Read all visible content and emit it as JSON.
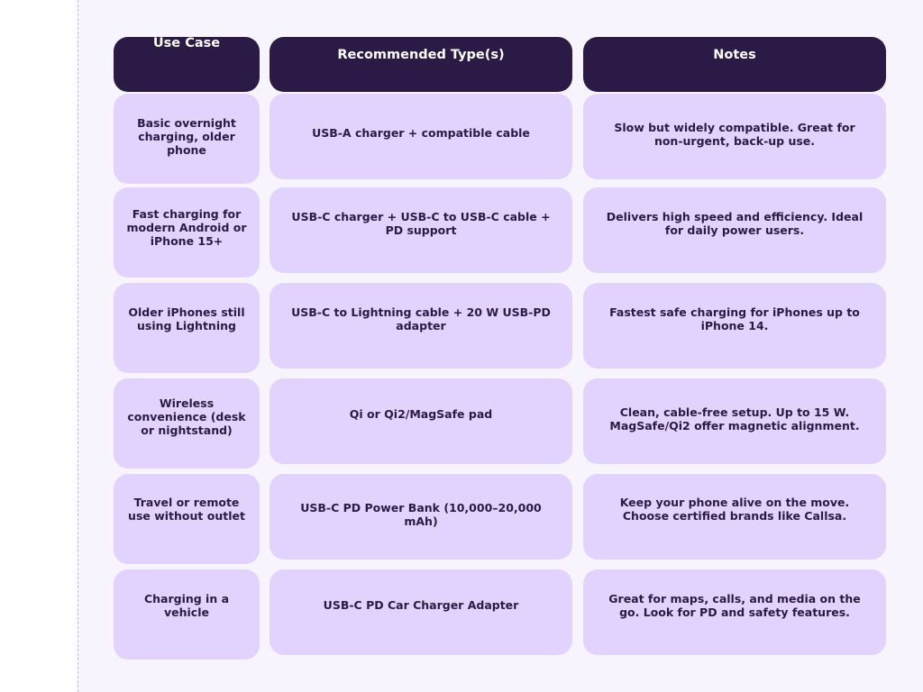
{
  "table": {
    "headers": [
      "Use Case",
      "Recommended Type(s)",
      "Notes"
    ],
    "rows": [
      [
        "Basic overnight charging, older phone",
        "USB-A charger + compatible cable",
        "Slow but widely compatible. Great for non-urgent, back-up use."
      ],
      [
        "Fast charging for modern Android or iPhone 15+",
        "USB-C charger + USB-C to USB-C cable + PD support",
        "Delivers high speed and efficiency. Ideal for daily power users."
      ],
      [
        "Older iPhones still using Lightning",
        "USB-C to Lightning cable + 20 W USB-PD adapter",
        "Fastest safe charging for iPhones up to iPhone 14."
      ],
      [
        "Wireless convenience (desk or nightstand)",
        "Qi or Qi2/MagSafe pad",
        "Clean, cable-free setup. Up to 15 W. MagSafe/Qi2 offer magnetic alignment."
      ],
      [
        "Travel or remote use without outlet",
        "USB-C PD Power Bank (10,000–20,000 mAh)",
        "Keep your phone alive on the move. Choose certified brands like Callsa."
      ],
      [
        "Charging in a vehicle",
        "USB-C PD Car Charger Adapter",
        "Great for maps, calls, and media on the go. Look for PD and safety features."
      ]
    ]
  },
  "colors": {
    "header_bg": "#2a1a45",
    "cell_bg": "#e2d3fe",
    "page_bg": "#f7f4fe"
  }
}
